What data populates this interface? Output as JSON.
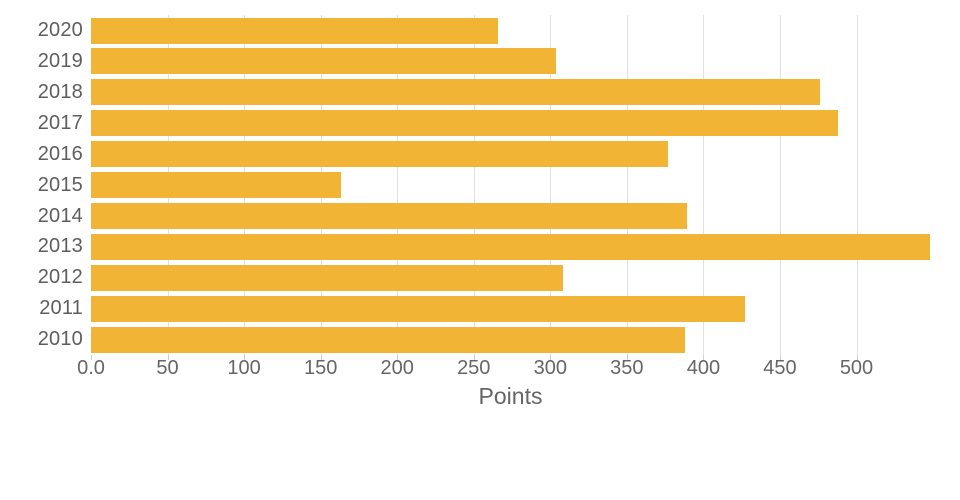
{
  "chart_data": {
    "type": "bar",
    "orientation": "horizontal",
    "title": "",
    "xlabel": "Points",
    "ylabel": "",
    "categories": [
      "2020",
      "2019",
      "2018",
      "2017",
      "2016",
      "2015",
      "2014",
      "2013",
      "2012",
      "2011",
      "2010"
    ],
    "values": [
      266,
      304,
      476,
      488,
      377,
      163,
      389,
      548,
      308,
      427,
      388
    ],
    "series_name": "Points",
    "xticks": [
      {
        "value": 0,
        "label": "0.0"
      },
      {
        "value": 50,
        "label": "50"
      },
      {
        "value": 100,
        "label": "100"
      },
      {
        "value": 150,
        "label": "150"
      },
      {
        "value": 200,
        "label": "200"
      },
      {
        "value": 250,
        "label": "250"
      },
      {
        "value": 300,
        "label": "300"
      },
      {
        "value": 350,
        "label": "350"
      },
      {
        "value": 400,
        "label": "400"
      },
      {
        "value": 450,
        "label": "450"
      },
      {
        "value": 500,
        "label": "500"
      }
    ],
    "xlim": [
      0,
      548
    ],
    "grid": "vertical",
    "legend_position": "none",
    "colors": {
      "bar": "#F1B434",
      "gridline": "#E1E1E1",
      "tickmark": "#CFCFCF",
      "year_label_text": "#5E5E5E",
      "tick_label_text": "#666666",
      "axis_title_text": "#666666",
      "background": "#FFFFFF"
    }
  }
}
